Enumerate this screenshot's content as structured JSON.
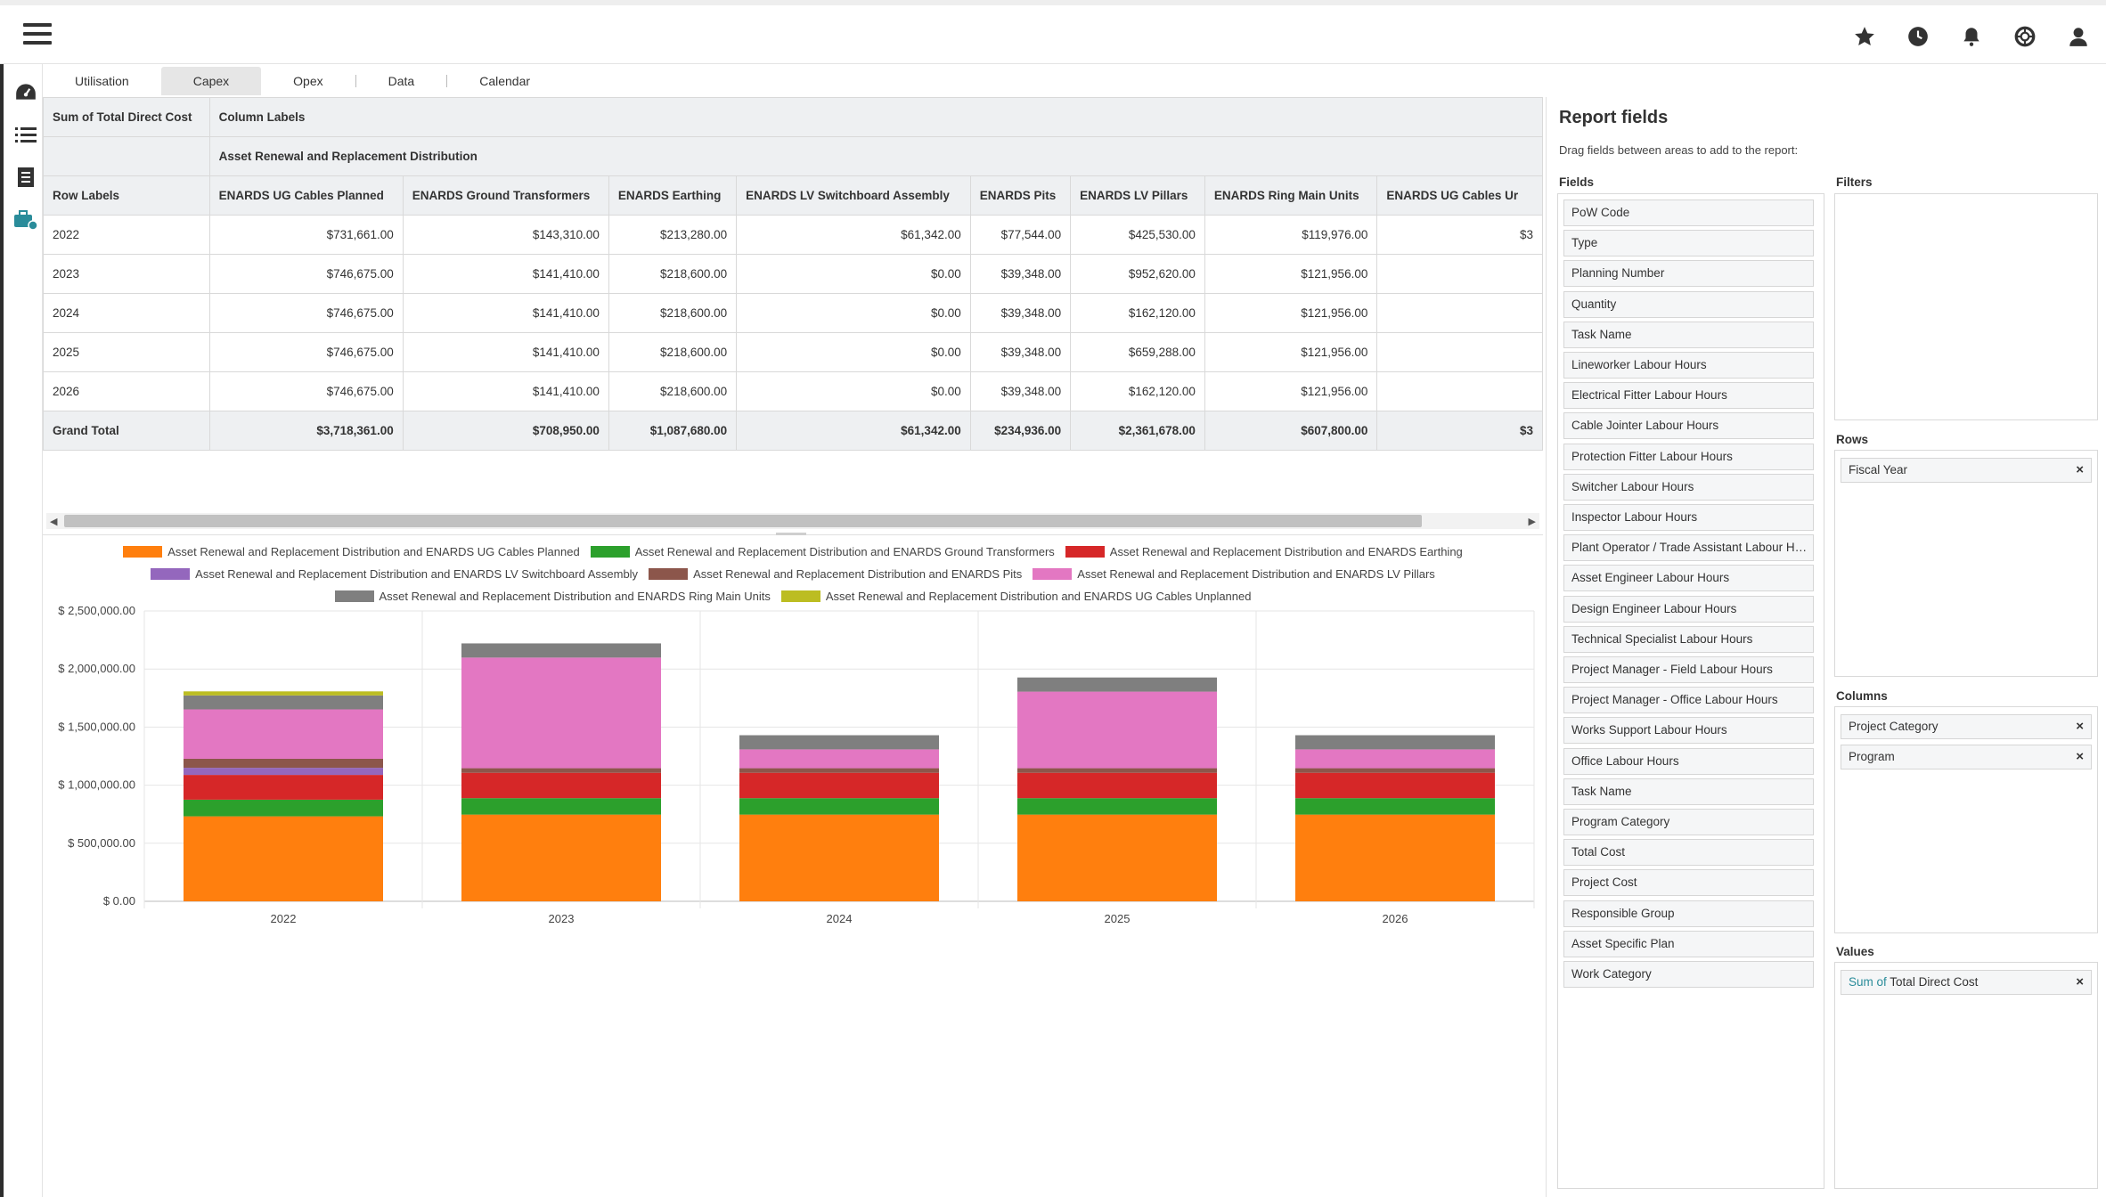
{
  "tabs": [
    "Utilisation",
    "Capex",
    "Opex",
    "Data",
    "Calendar"
  ],
  "active_tab": "Capex",
  "pivot": {
    "corner": "Sum of Total Direct Cost",
    "column_labels": "Column Labels",
    "group": "Asset Renewal and Replacement Distribution",
    "row_labels_header": "Row Labels",
    "columns": [
      "ENARDS UG Cables Planned",
      "ENARDS Ground Transformers",
      "ENARDS Earthing",
      "ENARDS LV Switchboard Assembly",
      "ENARDS Pits",
      "ENARDS LV Pillars",
      "ENARDS Ring Main Units",
      "ENARDS UG Cables Ur"
    ],
    "rows": [
      {
        "label": "2022",
        "values": [
          "$731,661.00",
          "$143,310.00",
          "$213,280.00",
          "$61,342.00",
          "$77,544.00",
          "$425,530.00",
          "$119,976.00",
          "$3"
        ]
      },
      {
        "label": "2023",
        "values": [
          "$746,675.00",
          "$141,410.00",
          "$218,600.00",
          "$0.00",
          "$39,348.00",
          "$952,620.00",
          "$121,956.00",
          ""
        ]
      },
      {
        "label": "2024",
        "values": [
          "$746,675.00",
          "$141,410.00",
          "$218,600.00",
          "$0.00",
          "$39,348.00",
          "$162,120.00",
          "$121,956.00",
          ""
        ]
      },
      {
        "label": "2025",
        "values": [
          "$746,675.00",
          "$141,410.00",
          "$218,600.00",
          "$0.00",
          "$39,348.00",
          "$659,288.00",
          "$121,956.00",
          ""
        ]
      },
      {
        "label": "2026",
        "values": [
          "$746,675.00",
          "$141,410.00",
          "$218,600.00",
          "$0.00",
          "$39,348.00",
          "$162,120.00",
          "$121,956.00",
          ""
        ]
      }
    ],
    "total": {
      "label": "Grand Total",
      "values": [
        "$3,718,361.00",
        "$708,950.00",
        "$1,087,680.00",
        "$61,342.00",
        "$234,936.00",
        "$2,361,678.00",
        "$607,800.00",
        "$3"
      ]
    }
  },
  "chart_data": {
    "type": "bar",
    "stacked": true,
    "categories": [
      "2022",
      "2023",
      "2024",
      "2025",
      "2026"
    ],
    "y_ticks": [
      "$ 0.00",
      "$ 500,000.00",
      "$ 1,000,000.00",
      "$ 1,500,000.00",
      "$ 2,000,000.00",
      "$ 2,500,000.00"
    ],
    "ylim": [
      0,
      2500000
    ],
    "grid": true,
    "legend_position": "top",
    "series": [
      {
        "name": "Asset Renewal and Replacement Distribution and ENARDS UG Cables Planned",
        "color": "#ff7f0e",
        "values": [
          731661,
          746675,
          746675,
          746675,
          746675
        ]
      },
      {
        "name": "Asset Renewal and Replacement Distribution and ENARDS Ground Transformers",
        "color": "#2ca02c",
        "values": [
          143310,
          141410,
          141410,
          141410,
          141410
        ]
      },
      {
        "name": "Asset Renewal and Replacement Distribution and ENARDS Earthing",
        "color": "#d62728",
        "values": [
          213280,
          218600,
          218600,
          218600,
          218600
        ]
      },
      {
        "name": "Asset Renewal and Replacement Distribution and ENARDS LV Switchboard Assembly",
        "color": "#9467bd",
        "values": [
          61342,
          0,
          0,
          0,
          0
        ]
      },
      {
        "name": "Asset Renewal and Replacement Distribution and ENARDS Pits",
        "color": "#8c564b",
        "values": [
          77544,
          39348,
          39348,
          39348,
          39348
        ]
      },
      {
        "name": "Asset Renewal and Replacement Distribution and ENARDS LV Pillars",
        "color": "#e377c2",
        "values": [
          425530,
          952620,
          162120,
          659288,
          162120
        ]
      },
      {
        "name": "Asset Renewal and Replacement Distribution and ENARDS Ring Main Units",
        "color": "#7f7f7f",
        "values": [
          119976,
          121956,
          121956,
          121956,
          121956
        ]
      },
      {
        "name": "Asset Renewal and Replacement Distribution and ENARDS UG Cables Unplanned",
        "color": "#bcbd22",
        "values": [
          35000,
          0,
          0,
          0,
          0
        ]
      }
    ]
  },
  "panel": {
    "title": "Report fields",
    "subtitle": "Drag fields between areas to add to the report:",
    "fields_label": "Fields",
    "filters_label": "Filters",
    "rows_label": "Rows",
    "columns_label": "Columns",
    "values_label": "Values",
    "fields": [
      "PoW Code",
      "Type",
      "Planning Number",
      "Quantity",
      "Task Name",
      "Lineworker Labour Hours",
      "Electrical Fitter Labour Hours",
      "Cable Jointer Labour Hours",
      "Protection Fitter Labour Hours",
      "Switcher Labour Hours",
      "Inspector Labour Hours",
      "Plant Operator / Trade Assistant Labour Hours",
      "Asset Engineer Labour Hours",
      "Design Engineer Labour Hours",
      "Technical Specialist Labour Hours",
      "Project Manager - Field Labour Hours",
      "Project Manager - Office Labour Hours",
      "Works Support Labour Hours",
      "Office Labour Hours",
      "Task Name",
      "Program Category",
      "Total Cost",
      "Project Cost",
      "Responsible Group",
      "Asset Specific Plan",
      "Work Category"
    ],
    "rows": [
      "Fiscal Year"
    ],
    "columns": [
      "Project Category",
      "Program"
    ],
    "values_prefix": "Sum of",
    "values_field": "Total Direct Cost",
    "remove_glyph": "×"
  },
  "icons": {
    "menu": "hamburger-icon",
    "top": [
      "star-icon",
      "clock-icon",
      "bell-icon",
      "lifebuoy-icon",
      "user-icon"
    ],
    "rail": [
      "dashboard-icon",
      "list-icon",
      "report-icon",
      "briefcase-icon"
    ]
  }
}
